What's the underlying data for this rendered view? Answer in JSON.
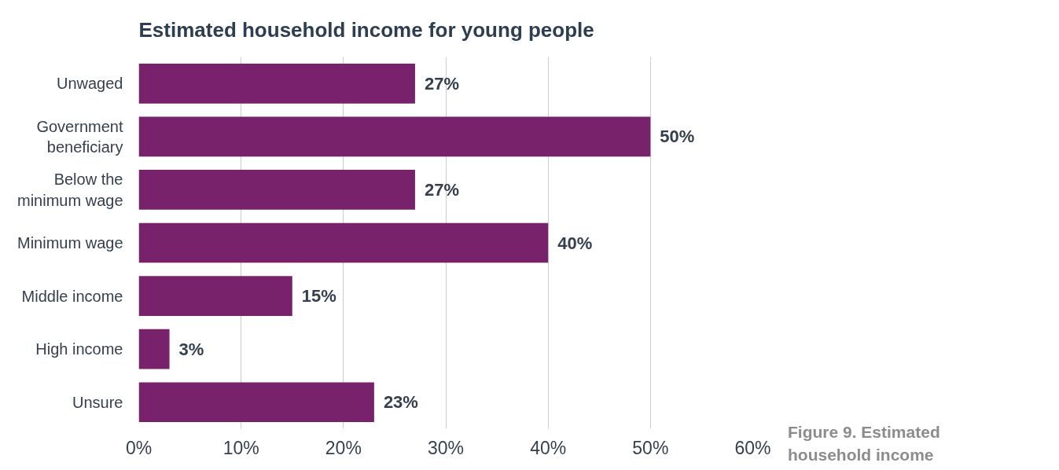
{
  "chart_data": {
    "type": "bar",
    "orientation": "horizontal",
    "title": "Estimated household income for young people",
    "categories": [
      "Unwaged",
      "Government beneficiary",
      "Below the minimum wage",
      "Minimum wage",
      "Middle income",
      "High income",
      "Unsure"
    ],
    "values": [
      27,
      50,
      27,
      40,
      15,
      3,
      23
    ],
    "color": "#77226a",
    "xlim": [
      0,
      60
    ],
    "xticks": [
      {
        "value": 0,
        "label": "0%"
      },
      {
        "value": 10,
        "label": "10%"
      },
      {
        "value": 20,
        "label": "20%"
      },
      {
        "value": 30,
        "label": "30%"
      },
      {
        "value": 40,
        "label": "40%"
      },
      {
        "value": 50,
        "label": "50%"
      },
      {
        "value": 60,
        "label": "60%"
      }
    ],
    "value_labels": [
      "27%",
      "50%",
      "27%",
      "40%",
      "15%",
      "3%",
      "23%"
    ],
    "grid": "x",
    "annotations": [
      "Figure 9. Estimated household income"
    ]
  }
}
